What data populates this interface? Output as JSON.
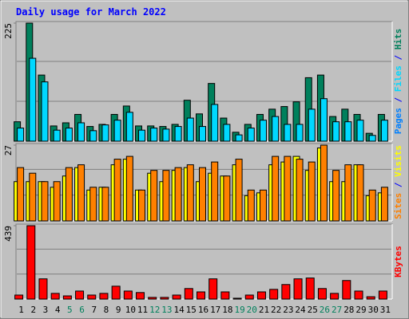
{
  "title": "Daily usage for March 2022",
  "chart_data": [
    {
      "type": "bar",
      "ylim": [
        0,
        225
      ],
      "yticks": [
        225
      ],
      "grid": true,
      "extra_label": {
        "text": "Pages",
        "color": "#0080ff"
      },
      "separator": " / ",
      "series": [
        {
          "name": "Hits",
          "color": "#00805c",
          "values": [
            37,
            225,
            126,
            29,
            35,
            51,
            28,
            32,
            51,
            67,
            29,
            29,
            28,
            32,
            78,
            52,
            110,
            44,
            17,
            32,
            51,
            61,
            66,
            75,
            121,
            126,
            47,
            61,
            51,
            15,
            51
          ]
        },
        {
          "name": "Files",
          "color": "#00d8ff",
          "values": [
            25,
            158,
            113,
            21,
            25,
            35,
            20,
            31,
            40,
            55,
            21,
            25,
            23,
            28,
            44,
            28,
            70,
            32,
            12,
            25,
            40,
            47,
            32,
            32,
            61,
            81,
            37,
            37,
            40,
            11,
            40
          ]
        }
      ]
    },
    {
      "type": "bar",
      "ylim": [
        0,
        27
      ],
      "yticks": [
        27
      ],
      "grid": true,
      "separator": " / ",
      "series": [
        {
          "name": "Visits",
          "color": "#ffff00",
          "values": [
            14,
            14,
            14,
            12,
            16,
            19,
            11,
            12,
            20,
            22,
            11,
            17,
            14,
            18,
            19,
            14,
            17,
            16,
            20,
            9,
            10,
            20,
            21,
            23,
            18,
            26,
            14,
            14,
            20,
            9,
            10
          ]
        },
        {
          "name": "Sites",
          "color": "#ff8000",
          "values": [
            19,
            17,
            14,
            14,
            19,
            20,
            12,
            12,
            22,
            23,
            11,
            18,
            18,
            19,
            20,
            19,
            21,
            16,
            22,
            11,
            11,
            23,
            23,
            22,
            21,
            27,
            18,
            20,
            20,
            11,
            12
          ]
        }
      ]
    },
    {
      "type": "bar",
      "ylim": [
        0,
        439
      ],
      "yticks": [
        439
      ],
      "grid": true,
      "weekend": [
        4,
        5,
        11,
        12,
        18,
        19,
        25,
        26
      ],
      "weekend_color": "#00805c",
      "categories": [
        "1",
        "2",
        "3",
        "4",
        "5",
        "6",
        "7",
        "8",
        "9",
        "10",
        "11",
        "12",
        "13",
        "14",
        "15",
        "16",
        "17",
        "18",
        "19",
        "20",
        "21",
        "22",
        "23",
        "24",
        "25",
        "26",
        "27",
        "28",
        "29",
        "30",
        "31"
      ],
      "series": [
        {
          "name": "KBytes",
          "color": "#ff0000",
          "values": [
            24,
            439,
            121,
            34,
            19,
            48,
            24,
            34,
            77,
            48,
            39,
            10,
            10,
            24,
            63,
            43,
            121,
            43,
            5,
            24,
            43,
            58,
            87,
            121,
            126,
            63,
            34,
            111,
            48,
            14,
            48
          ]
        }
      ]
    }
  ]
}
